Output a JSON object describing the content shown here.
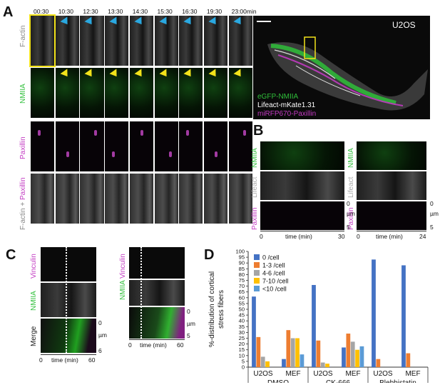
{
  "panels": {
    "A": {
      "letter": "A",
      "timepoints": [
        "00:30",
        "10:30",
        "12:30",
        "13:30",
        "14:30",
        "15:30",
        "16:30",
        "19:30",
        "23:00min"
      ],
      "row_labels": {
        "factin": "F-actin",
        "nmiia": "NMIIA",
        "paxillin": "Paxillin",
        "merge_a": "F-actin + ",
        "merge_b": "Paxillin"
      },
      "cell_label": "U2OS",
      "legend": {
        "l1": "eGFP-NMIIA",
        "l2": "Lifeact-mKate1.31",
        "l3": "miRFP670-Paxillin"
      },
      "colors": {
        "green": "#2fbf3a",
        "magenta": "#c23ac2",
        "gray": "#9a9a9a",
        "yellow": "#f2e21a",
        "blue": "#2aa8e0"
      }
    },
    "B": {
      "letter": "B",
      "labels": {
        "nmiia": "NMIIA",
        "lifeact": "Lifeact",
        "paxillin": "Paxillin"
      },
      "scale": {
        "top": "0",
        "unit": "µm",
        "bottom": "5"
      },
      "xaxis": {
        "start": "0",
        "label": "time (min)",
        "end_left": "30",
        "end_right": "24"
      }
    },
    "C": {
      "letter": "C",
      "labels": {
        "vinculin": "Vinculin",
        "nmiia": "NMIIA",
        "merge": "Merge"
      },
      "scale_left": {
        "top": "0",
        "unit": "µm",
        "bottom": "6"
      },
      "scale_right": {
        "top": "0",
        "unit": "µm",
        "bottom": "5"
      },
      "xaxis": {
        "start": "0",
        "label": "time (min)",
        "end": "60"
      }
    },
    "D": {
      "letter": "D"
    }
  },
  "chart_data": {
    "type": "bar",
    "ylabel_line1": "%-distribution of cortical",
    "ylabel_line2": "stress fibers",
    "ylim": [
      0,
      100
    ],
    "yticks": [
      "0",
      "5",
      "10",
      "15",
      "20",
      "25",
      "30",
      "35",
      "40",
      "45",
      "50",
      "55",
      "60",
      "65",
      "70",
      "75",
      "80",
      "85",
      "90",
      "95",
      "100"
    ],
    "categories": [
      "U2OS",
      "MEF",
      "U2OS",
      "MEF",
      "U2OS",
      "MEF"
    ],
    "groups": [
      "DMSO",
      "CK-666",
      "Blebbistatin"
    ],
    "legend_position": "top-left",
    "series": [
      {
        "name": "0 /cell",
        "color": "#4472c4",
        "values": [
          61,
          7,
          71,
          17,
          93,
          88
        ]
      },
      {
        "name": "1-3 /cell",
        "color": "#ed7d31",
        "values": [
          26,
          32,
          23,
          29,
          7,
          12
        ]
      },
      {
        "name": "4-6 /cell",
        "color": "#a5a5a5",
        "values": [
          9,
          25,
          4,
          22,
          0,
          0
        ]
      },
      {
        "name": "7-10 /cell",
        "color": "#ffc000",
        "values": [
          5,
          25,
          3,
          15,
          0,
          0
        ]
      },
      {
        "name": "<10 /cell",
        "color": "#5b9bd5",
        "values": [
          0,
          11,
          0,
          18,
          0,
          0
        ]
      }
    ]
  }
}
